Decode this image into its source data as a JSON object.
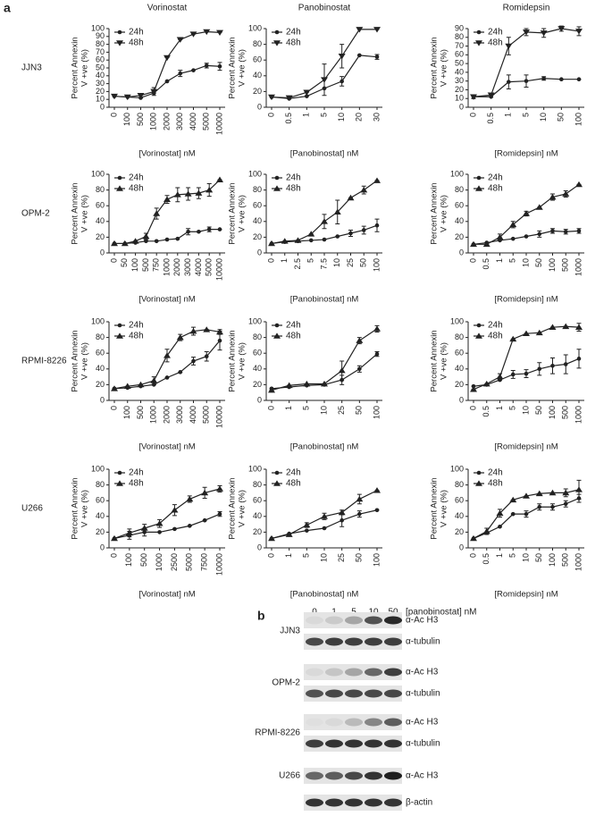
{
  "figure_label": "a",
  "cell_lines": [
    "JJN3",
    "OPM-2",
    "RPMI-8226",
    "U266"
  ],
  "chart_data": [
    {
      "type": "line",
      "title": "Vorinostat",
      "ylabel": [
        "Percent Annexin",
        "V +ve (%)"
      ],
      "xlabel": "[Vorinostat] nM",
      "categories": [
        "0",
        "100",
        "500",
        "1000",
        "2000",
        "3000",
        "4000",
        "5000",
        "10000"
      ],
      "ylim": [
        0,
        100
      ],
      "yticks": [
        0,
        10,
        20,
        30,
        40,
        50,
        60,
        70,
        80,
        90,
        100
      ],
      "series": [
        {
          "name": "24h",
          "marker": "circle",
          "color": "#222",
          "values": [
            14,
            13,
            12,
            18,
            33,
            43,
            47,
            53,
            52
          ],
          "errors": [
            0,
            0,
            0,
            0,
            0,
            4,
            0,
            3,
            5
          ]
        },
        {
          "name": "48h",
          "marker": "triangle-down",
          "color": "#222",
          "values": [
            14,
            13,
            15,
            20,
            63,
            86,
            93,
            96,
            95
          ],
          "errors": [
            0,
            0,
            0,
            5,
            0,
            0,
            0,
            0,
            0
          ]
        }
      ]
    },
    {
      "type": "line",
      "title": "Panobinostat",
      "ylabel": [
        "Percent Annexin",
        "V +ve (%)"
      ],
      "xlabel": "[Panobinostat] nM",
      "categories": [
        "0",
        "0.5",
        "1",
        "5",
        "10",
        "20",
        "30"
      ],
      "ylim": [
        0,
        100
      ],
      "yticks": [
        0,
        20,
        40,
        60,
        80,
        100
      ],
      "series": [
        {
          "name": "24h",
          "marker": "circle",
          "color": "#222",
          "values": [
            13,
            11,
            14,
            24,
            33,
            66,
            64
          ],
          "errors": [
            0,
            0,
            0,
            0,
            6,
            0,
            3
          ]
        },
        {
          "name": "48h",
          "marker": "triangle-down",
          "color": "#222",
          "values": [
            13,
            12,
            19,
            35,
            65,
            99,
            99
          ],
          "errors": [
            0,
            0,
            0,
            20,
            15,
            0,
            0
          ]
        }
      ]
    },
    {
      "type": "line",
      "title": "Romidepsin",
      "ylabel": [
        "Percent Annexin",
        "V +ve (%)"
      ],
      "xlabel": "[Romidepsin] nM",
      "categories": [
        "0",
        "0.5",
        "1",
        "5",
        "10",
        "50",
        "100"
      ],
      "ylim": [
        0,
        90
      ],
      "yticks": [
        0,
        10,
        20,
        30,
        40,
        50,
        60,
        70,
        80,
        90
      ],
      "series": [
        {
          "name": "24h",
          "marker": "circle",
          "color": "#222",
          "values": [
            12,
            12,
            29,
            30,
            33,
            32,
            32
          ],
          "errors": [
            2,
            0,
            8,
            7,
            2,
            0,
            0
          ]
        },
        {
          "name": "48h",
          "marker": "triangle-down",
          "color": "#222",
          "values": [
            12,
            14,
            70,
            86,
            85,
            90,
            87
          ],
          "errors": [
            2,
            0,
            10,
            4,
            5,
            3,
            5
          ]
        }
      ]
    },
    {
      "type": "line",
      "ylabel": [
        "Percent Annexin",
        "V +ve (%)"
      ],
      "xlabel": "[Vorinostat] nM",
      "categories": [
        "0",
        "50",
        "100",
        "500",
        "750",
        "1000",
        "2000",
        "3000",
        "4000",
        "5000",
        "10000"
      ],
      "ylim": [
        0,
        100
      ],
      "yticks": [
        0,
        20,
        40,
        60,
        80,
        100
      ],
      "series": [
        {
          "name": "24h",
          "marker": "circle",
          "color": "#222",
          "values": [
            12,
            12,
            13,
            15,
            15,
            17,
            18,
            27,
            27,
            30,
            30
          ],
          "errors": [
            0,
            0,
            0,
            0,
            0,
            0,
            0,
            4,
            0,
            3,
            0
          ]
        },
        {
          "name": "48h",
          "marker": "triangle-up",
          "color": "#222",
          "values": [
            12,
            12,
            15,
            21,
            50,
            68,
            74,
            75,
            76,
            80,
            93
          ],
          "errors": [
            0,
            0,
            0,
            4,
            7,
            5,
            9,
            8,
            7,
            8,
            0
          ]
        }
      ]
    },
    {
      "type": "line",
      "ylabel": [
        "Percent Annexin",
        "V +ve (%)"
      ],
      "xlabel": "[Panobinostat] nM",
      "categories": [
        "0",
        "1",
        "2.5",
        "5",
        "7.5",
        "10",
        "25",
        "50",
        "100"
      ],
      "ylim": [
        0,
        100
      ],
      "yticks": [
        0,
        20,
        40,
        60,
        80,
        100
      ],
      "series": [
        {
          "name": "24h",
          "marker": "circle",
          "color": "#222",
          "values": [
            12,
            14,
            15,
            16,
            17,
            21,
            25,
            29,
            35
          ],
          "errors": [
            0,
            0,
            0,
            0,
            0,
            0,
            4,
            5,
            8
          ]
        },
        {
          "name": "48h",
          "marker": "triangle-up",
          "color": "#222",
          "values": [
            12,
            15,
            16,
            24,
            40,
            52,
            70,
            80,
            92
          ],
          "errors": [
            0,
            0,
            0,
            0,
            9,
            15,
            0,
            5,
            0
          ]
        }
      ]
    },
    {
      "type": "line",
      "ylabel": [
        "Percent Annexin",
        "V +ve (%)"
      ],
      "xlabel": "[Romidepsin] nM",
      "categories": [
        "0",
        "0.5",
        "1",
        "5",
        "10",
        "50",
        "100",
        "500",
        "1000"
      ],
      "ylim": [
        0,
        100
      ],
      "yticks": [
        0,
        20,
        40,
        60,
        80,
        100
      ],
      "series": [
        {
          "name": "24h",
          "marker": "circle",
          "color": "#222",
          "values": [
            11,
            13,
            16,
            18,
            21,
            24,
            28,
            27,
            28
          ],
          "errors": [
            0,
            0,
            0,
            0,
            0,
            4,
            3,
            3,
            3
          ]
        },
        {
          "name": "48h",
          "marker": "triangle-up",
          "color": "#222",
          "values": [
            11,
            11,
            20,
            36,
            50,
            58,
            71,
            75,
            87
          ],
          "errors": [
            0,
            0,
            4,
            4,
            3,
            0,
            4,
            4,
            0
          ]
        }
      ]
    },
    {
      "type": "line",
      "ylabel": [
        "Percent Annexin",
        "V +ve (%)"
      ],
      "xlabel": "[Vorinostat] nM",
      "categories": [
        "0",
        "100",
        "500",
        "1000",
        "2000",
        "3000",
        "4000",
        "5000",
        "10000"
      ],
      "ylim": [
        0,
        100
      ],
      "yticks": [
        0,
        20,
        40,
        60,
        80,
        100
      ],
      "series": [
        {
          "name": "24h",
          "marker": "circle",
          "color": "#222",
          "values": [
            15,
            16,
            18,
            20,
            29,
            36,
            50,
            56,
            76
          ],
          "errors": [
            0,
            0,
            0,
            0,
            0,
            0,
            5,
            6,
            12
          ]
        },
        {
          "name": "48h",
          "marker": "triangle-up",
          "color": "#222",
          "values": [
            15,
            18,
            20,
            25,
            57,
            80,
            88,
            90,
            87
          ],
          "errors": [
            0,
            0,
            0,
            5,
            8,
            4,
            5,
            0,
            3
          ]
        }
      ]
    },
    {
      "type": "line",
      "ylabel": [
        "Percent Annexin",
        "V +ve (%)"
      ],
      "xlabel": "[Panobinostat] nM",
      "categories": [
        "0",
        "1",
        "5",
        "10",
        "25",
        "50",
        "100"
      ],
      "ylim": [
        0,
        100
      ],
      "yticks": [
        0,
        20,
        40,
        60,
        80,
        100
      ],
      "series": [
        {
          "name": "24h",
          "marker": "circle",
          "color": "#222",
          "values": [
            15,
            17,
            19,
            20,
            26,
            40,
            59
          ],
          "errors": [
            0,
            0,
            0,
            0,
            6,
            4,
            3
          ]
        },
        {
          "name": "48h",
          "marker": "triangle-up",
          "color": "#222",
          "values": [
            13,
            19,
            21,
            21,
            38,
            76,
            91
          ],
          "errors": [
            0,
            0,
            0,
            0,
            12,
            4,
            4
          ]
        }
      ]
    },
    {
      "type": "line",
      "ylabel": [
        "Percent Annexin",
        "V +ve (%)"
      ],
      "xlabel": "[Romidepsin] nM",
      "categories": [
        "0",
        "0.5",
        "1",
        "5",
        "10",
        "50",
        "100",
        "500",
        "1000"
      ],
      "ylim": [
        0,
        100
      ],
      "yticks": [
        0,
        20,
        40,
        60,
        80,
        100
      ],
      "series": [
        {
          "name": "24h",
          "marker": "circle",
          "color": "#222",
          "values": [
            18,
            20,
            26,
            33,
            34,
            40,
            44,
            46,
            53
          ],
          "errors": [
            0,
            0,
            0,
            5,
            5,
            8,
            10,
            12,
            12
          ]
        },
        {
          "name": "48h",
          "marker": "triangle-up",
          "color": "#222",
          "values": [
            14,
            21,
            30,
            78,
            85,
            86,
            93,
            94,
            93
          ],
          "errors": [
            0,
            0,
            4,
            0,
            0,
            0,
            0,
            0,
            5
          ]
        }
      ]
    },
    {
      "type": "line",
      "ylabel": [
        "Percent Annexin",
        "V +ve (%)"
      ],
      "xlabel": "[Vorinostat] nM",
      "categories": [
        "0",
        "100",
        "500",
        "1000",
        "2500",
        "5000",
        "7500",
        "10000"
      ],
      "ylim": [
        0,
        100
      ],
      "yticks": [
        0,
        20,
        40,
        60,
        80,
        100
      ],
      "series": [
        {
          "name": "24h",
          "marker": "circle",
          "color": "#222",
          "values": [
            12,
            16,
            20,
            20,
            24,
            28,
            35,
            43
          ],
          "errors": [
            0,
            5,
            5,
            0,
            0,
            0,
            0,
            3
          ]
        },
        {
          "name": "48h",
          "marker": "triangle-up",
          "color": "#222",
          "values": [
            12,
            19,
            25,
            31,
            48,
            62,
            70,
            75
          ],
          "errors": [
            0,
            5,
            5,
            5,
            7,
            4,
            7,
            4
          ]
        }
      ]
    },
    {
      "type": "line",
      "ylabel": [
        "Percent Annexin",
        "V +ve (%)"
      ],
      "xlabel": "[Panobinostat] nM",
      "categories": [
        "0",
        "1",
        "5",
        "10",
        "25",
        "50",
        "100"
      ],
      "ylim": [
        0,
        100
      ],
      "yticks": [
        0,
        20,
        40,
        60,
        80,
        100
      ],
      "series": [
        {
          "name": "24h",
          "marker": "circle",
          "color": "#222",
          "values": [
            12,
            18,
            22,
            25,
            35,
            43,
            48
          ],
          "errors": [
            0,
            0,
            0,
            0,
            8,
            4,
            0
          ]
        },
        {
          "name": "48h",
          "marker": "triangle-up",
          "color": "#222",
          "values": [
            12,
            17,
            29,
            40,
            45,
            62,
            73
          ],
          "errors": [
            0,
            0,
            3,
            4,
            3,
            6,
            0
          ]
        }
      ]
    },
    {
      "type": "line",
      "ylabel": [
        "Percent Annexin",
        "V +ve (%)"
      ],
      "xlabel": "[Romidepsin] nM",
      "categories": [
        "0",
        "0.5",
        "1",
        "5",
        "10",
        "50",
        "100",
        "500",
        "1000"
      ],
      "ylim": [
        0,
        100
      ],
      "yticks": [
        0,
        20,
        40,
        60,
        80,
        100
      ],
      "series": [
        {
          "name": "24h",
          "marker": "circle",
          "color": "#222",
          "values": [
            12,
            19,
            27,
            43,
            43,
            52,
            52,
            56,
            63
          ],
          "errors": [
            0,
            0,
            0,
            0,
            4,
            4,
            4,
            4,
            5
          ]
        },
        {
          "name": "48h",
          "marker": "triangle-up",
          "color": "#222",
          "values": [
            12,
            21,
            44,
            61,
            66,
            69,
            70,
            70,
            74
          ],
          "errors": [
            0,
            4,
            5,
            0,
            0,
            0,
            0,
            5,
            12
          ]
        }
      ]
    }
  ],
  "blot": {
    "label": "b",
    "lanes": [
      "0",
      "1",
      "5",
      "10",
      "50"
    ],
    "unit": "[panobinostat] nM",
    "rows": [
      {
        "name": "JJN3",
        "bands": [
          "α-Ac H3",
          "α-tubulin"
        ]
      },
      {
        "name": "OPM-2",
        "bands": [
          "α-Ac H3",
          "α-tubulin"
        ]
      },
      {
        "name": "RPMI-8226",
        "bands": [
          "α-Ac H3",
          "α-tubulin"
        ]
      },
      {
        "name": "U266",
        "bands": [
          "α-Ac H3",
          "β-actin"
        ]
      }
    ]
  }
}
